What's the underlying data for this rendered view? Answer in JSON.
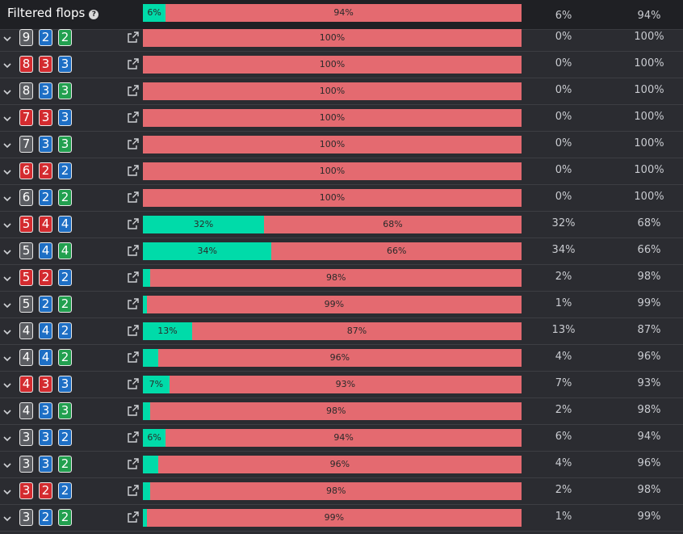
{
  "header": {
    "title": "Filtered flops",
    "help_icon": "?",
    "equity_pct": 6,
    "bar_left_label": "6%",
    "bar_right_label": "94%",
    "col_left": "6%",
    "col_right": "94%"
  },
  "colors": {
    "win": "#00dba9",
    "lose": "#e46a70",
    "suit_red": "#d32b2f",
    "suit_blue": "#1e6fc5",
    "suit_green": "#22a04f",
    "suit_gray": "#5b5d62"
  },
  "rows": [
    {
      "cards": [
        {
          "r": "9",
          "s": "gray"
        },
        {
          "r": "2",
          "s": "blue"
        },
        {
          "r": "2",
          "s": "green"
        }
      ],
      "equity_pct": 0,
      "left_label": "",
      "right_label": "100%",
      "col_left": "0%",
      "col_right": "100%"
    },
    {
      "cards": [
        {
          "r": "8",
          "s": "red"
        },
        {
          "r": "3",
          "s": "red"
        },
        {
          "r": "3",
          "s": "blue"
        }
      ],
      "equity_pct": 0,
      "left_label": "",
      "right_label": "100%",
      "col_left": "0%",
      "col_right": "100%"
    },
    {
      "cards": [
        {
          "r": "8",
          "s": "gray"
        },
        {
          "r": "3",
          "s": "blue"
        },
        {
          "r": "3",
          "s": "green"
        }
      ],
      "equity_pct": 0,
      "left_label": "",
      "right_label": "100%",
      "col_left": "0%",
      "col_right": "100%"
    },
    {
      "cards": [
        {
          "r": "7",
          "s": "red"
        },
        {
          "r": "3",
          "s": "red"
        },
        {
          "r": "3",
          "s": "blue"
        }
      ],
      "equity_pct": 0,
      "left_label": "",
      "right_label": "100%",
      "col_left": "0%",
      "col_right": "100%"
    },
    {
      "cards": [
        {
          "r": "7",
          "s": "gray"
        },
        {
          "r": "3",
          "s": "blue"
        },
        {
          "r": "3",
          "s": "green"
        }
      ],
      "equity_pct": 0,
      "left_label": "",
      "right_label": "100%",
      "col_left": "0%",
      "col_right": "100%"
    },
    {
      "cards": [
        {
          "r": "6",
          "s": "red"
        },
        {
          "r": "2",
          "s": "red"
        },
        {
          "r": "2",
          "s": "blue"
        }
      ],
      "equity_pct": 0,
      "left_label": "",
      "right_label": "100%",
      "col_left": "0%",
      "col_right": "100%"
    },
    {
      "cards": [
        {
          "r": "6",
          "s": "gray"
        },
        {
          "r": "2",
          "s": "blue"
        },
        {
          "r": "2",
          "s": "green"
        }
      ],
      "equity_pct": 0,
      "left_label": "",
      "right_label": "100%",
      "col_left": "0%",
      "col_right": "100%"
    },
    {
      "cards": [
        {
          "r": "5",
          "s": "red"
        },
        {
          "r": "4",
          "s": "red"
        },
        {
          "r": "4",
          "s": "blue"
        }
      ],
      "equity_pct": 32,
      "left_label": "32%",
      "right_label": "68%",
      "col_left": "32%",
      "col_right": "68%"
    },
    {
      "cards": [
        {
          "r": "5",
          "s": "gray"
        },
        {
          "r": "4",
          "s": "blue"
        },
        {
          "r": "4",
          "s": "green"
        }
      ],
      "equity_pct": 34,
      "left_label": "34%",
      "right_label": "66%",
      "col_left": "34%",
      "col_right": "66%"
    },
    {
      "cards": [
        {
          "r": "5",
          "s": "red"
        },
        {
          "r": "2",
          "s": "red"
        },
        {
          "r": "2",
          "s": "blue"
        }
      ],
      "equity_pct": 2,
      "left_label": "",
      "right_label": "98%",
      "col_left": "2%",
      "col_right": "98%"
    },
    {
      "cards": [
        {
          "r": "5",
          "s": "gray"
        },
        {
          "r": "2",
          "s": "blue"
        },
        {
          "r": "2",
          "s": "green"
        }
      ],
      "equity_pct": 1,
      "left_label": "",
      "right_label": "99%",
      "col_left": "1%",
      "col_right": "99%"
    },
    {
      "cards": [
        {
          "r": "4",
          "s": "gray"
        },
        {
          "r": "4",
          "s": "blue"
        },
        {
          "r": "2",
          "s": "blue"
        }
      ],
      "equity_pct": 13,
      "left_label": "13%",
      "right_label": "87%",
      "col_left": "13%",
      "col_right": "87%"
    },
    {
      "cards": [
        {
          "r": "4",
          "s": "gray"
        },
        {
          "r": "4",
          "s": "blue"
        },
        {
          "r": "2",
          "s": "green"
        }
      ],
      "equity_pct": 4,
      "left_label": "",
      "right_label": "96%",
      "col_left": "4%",
      "col_right": "96%"
    },
    {
      "cards": [
        {
          "r": "4",
          "s": "red"
        },
        {
          "r": "3",
          "s": "red"
        },
        {
          "r": "3",
          "s": "blue"
        }
      ],
      "equity_pct": 7,
      "left_label": "7%",
      "right_label": "93%",
      "col_left": "7%",
      "col_right": "93%"
    },
    {
      "cards": [
        {
          "r": "4",
          "s": "gray"
        },
        {
          "r": "3",
          "s": "blue"
        },
        {
          "r": "3",
          "s": "green"
        }
      ],
      "equity_pct": 2,
      "left_label": "",
      "right_label": "98%",
      "col_left": "2%",
      "col_right": "98%"
    },
    {
      "cards": [
        {
          "r": "3",
          "s": "gray"
        },
        {
          "r": "3",
          "s": "blue"
        },
        {
          "r": "2",
          "s": "blue"
        }
      ],
      "equity_pct": 6,
      "left_label": "6%",
      "right_label": "94%",
      "col_left": "6%",
      "col_right": "94%"
    },
    {
      "cards": [
        {
          "r": "3",
          "s": "gray"
        },
        {
          "r": "3",
          "s": "blue"
        },
        {
          "r": "2",
          "s": "green"
        }
      ],
      "equity_pct": 4,
      "left_label": "",
      "right_label": "96%",
      "col_left": "4%",
      "col_right": "96%"
    },
    {
      "cards": [
        {
          "r": "3",
          "s": "red"
        },
        {
          "r": "2",
          "s": "red"
        },
        {
          "r": "2",
          "s": "blue"
        }
      ],
      "equity_pct": 2,
      "left_label": "",
      "right_label": "98%",
      "col_left": "2%",
      "col_right": "98%"
    },
    {
      "cards": [
        {
          "r": "3",
          "s": "gray"
        },
        {
          "r": "2",
          "s": "blue"
        },
        {
          "r": "2",
          "s": "green"
        }
      ],
      "equity_pct": 1,
      "left_label": "",
      "right_label": "99%",
      "col_left": "1%",
      "col_right": "99%"
    }
  ]
}
